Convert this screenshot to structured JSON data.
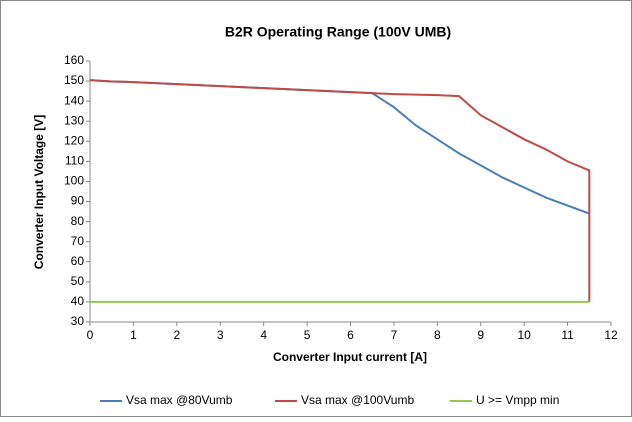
{
  "chart_data": {
    "type": "line",
    "title": "B2R Operating Range (100V UMB)",
    "x_label": "Converter Input current [A]",
    "y_label": "Converter  Input Voltage [V]",
    "xlim": [
      0,
      12
    ],
    "xticks": [
      0,
      1,
      2,
      3,
      4,
      5,
      6,
      7,
      8,
      9,
      10,
      11,
      12
    ],
    "ylim": [
      30,
      160
    ],
    "yticks": [
      30,
      40,
      50,
      60,
      70,
      80,
      90,
      100,
      110,
      120,
      130,
      140,
      150,
      160
    ],
    "grid": false,
    "legend": "bottom",
    "series": [
      {
        "name": "Vsa max @80Vumb",
        "color": "#4a7ebb",
        "x": [
          0,
          0.5,
          1,
          2,
          3,
          4,
          5,
          6,
          6.5,
          7,
          7.5,
          8,
          8.5,
          9,
          9.5,
          10,
          10.5,
          11,
          11.5
        ],
        "values": [
          150.5,
          149.8,
          149.5,
          148.5,
          147.5,
          146.5,
          145.5,
          144.5,
          144,
          137,
          128,
          121,
          114,
          108,
          102,
          97,
          92,
          88,
          84
        ]
      },
      {
        "name": "Vsa max @100Vumb",
        "color": "#be4b48",
        "x": [
          0,
          0.5,
          1,
          2,
          3,
          4,
          5,
          6,
          6.5,
          7,
          8,
          8.5,
          9,
          9.5,
          10,
          10.5,
          11,
          11.5,
          11.5
        ],
        "values": [
          150.5,
          149.8,
          149.5,
          148.5,
          147.5,
          146.5,
          145.5,
          144.5,
          144,
          143.5,
          143,
          142.5,
          133,
          127,
          121,
          116,
          110,
          105.5,
          40
        ]
      },
      {
        "name": "U >= Vmpp min",
        "color": "#98c454",
        "x": [
          0,
          11.5
        ],
        "values": [
          40,
          40
        ]
      }
    ]
  }
}
